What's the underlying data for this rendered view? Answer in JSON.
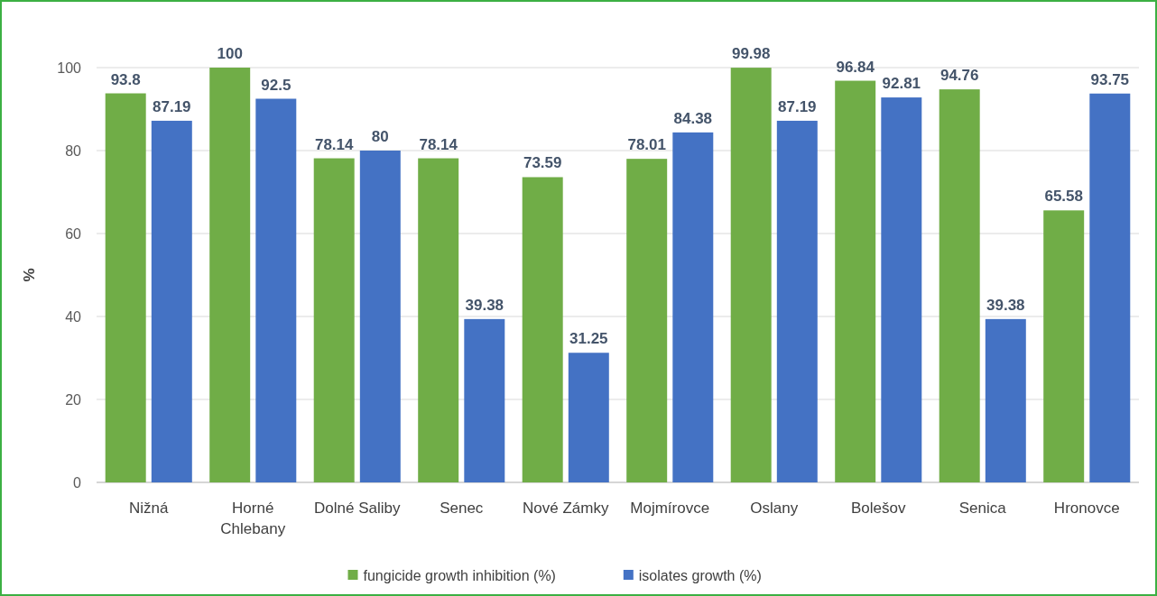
{
  "chart_data": {
    "type": "bar",
    "ylabel": "%",
    "categories": [
      "Nižná",
      "Horné Chlebany",
      "Dolné Saliby",
      "Senec",
      "Nové Zámky",
      "Mojmírovce",
      "Oslany",
      "Bolešov",
      "Senica",
      "Hronovce"
    ],
    "series": [
      {
        "name": "fungicide growth inhibition (%)",
        "color": "#70ad47",
        "values": [
          93.8,
          100,
          78.14,
          78.14,
          73.59,
          78.01,
          99.98,
          96.84,
          94.76,
          65.58
        ]
      },
      {
        "name": "isolates growth (%)",
        "color": "#4472c4",
        "values": [
          87.19,
          92.5,
          80,
          39.38,
          31.25,
          84.38,
          87.19,
          92.81,
          39.38,
          93.75
        ]
      }
    ],
    "ylim": [
      0,
      100
    ],
    "yticks": [
      0,
      20,
      40,
      60,
      80,
      100
    ],
    "grid": "y",
    "legend": "bottom",
    "data_labels": true
  }
}
